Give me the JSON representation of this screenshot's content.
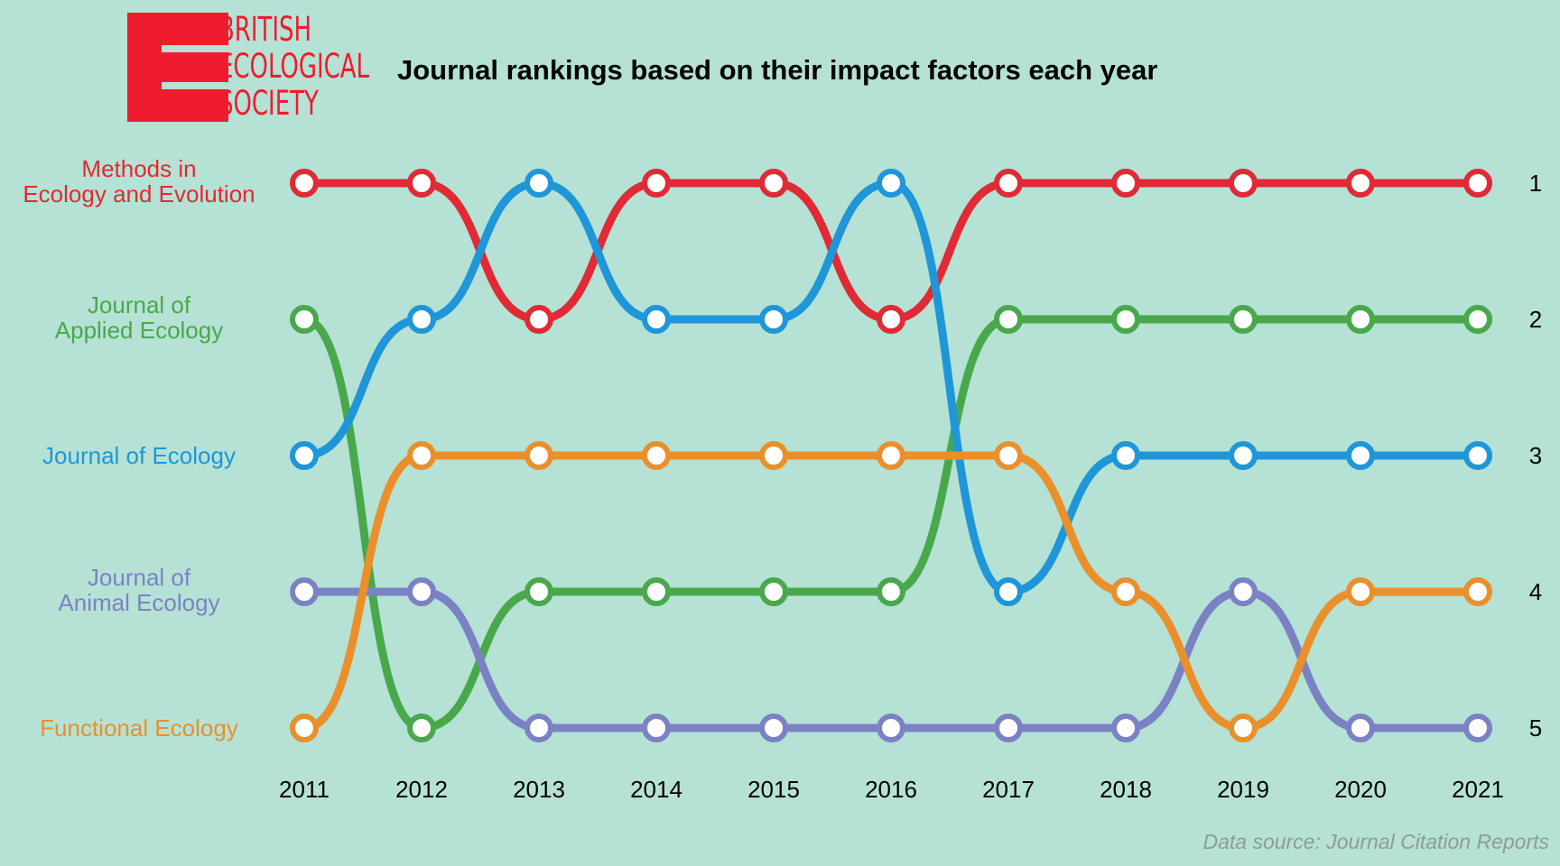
{
  "logo": {
    "line1": "BRITISH",
    "line2": "ECOLOGICAL",
    "line3": "SOCIETY",
    "color": "#ee1c2e"
  },
  "chart_data": {
    "type": "bump",
    "title": "Journal rankings based on their impact factors each year",
    "source": "Data source: Journal Citation Reports",
    "years": [
      "2011",
      "2012",
      "2013",
      "2014",
      "2015",
      "2016",
      "2017",
      "2018",
      "2019",
      "2020",
      "2021"
    ],
    "rank_labels": [
      "1",
      "2",
      "3",
      "4",
      "5"
    ],
    "series": [
      {
        "name": "Methods in\nEcology and Evolution",
        "color": "#e02a35",
        "ranks": [
          1,
          1,
          2,
          1,
          1,
          2,
          1,
          1,
          1,
          1,
          1
        ]
      },
      {
        "name": "Journal of\nApplied Ecology",
        "color": "#4aa84c",
        "ranks": [
          2,
          5,
          4,
          4,
          4,
          4,
          2,
          2,
          2,
          2,
          2
        ]
      },
      {
        "name": "Journal of Ecology",
        "color": "#1f96d8",
        "ranks": [
          3,
          2,
          1,
          2,
          2,
          1,
          4,
          3,
          3,
          3,
          3
        ]
      },
      {
        "name": "Journal of\nAnimal Ecology",
        "color": "#7b82c4",
        "ranks": [
          4,
          4,
          5,
          5,
          5,
          5,
          5,
          5,
          4,
          5,
          5
        ]
      },
      {
        "name": "Functional Ecology",
        "color": "#e9902c",
        "ranks": [
          5,
          3,
          3,
          3,
          3,
          3,
          3,
          4,
          5,
          4,
          4
        ]
      }
    ]
  }
}
